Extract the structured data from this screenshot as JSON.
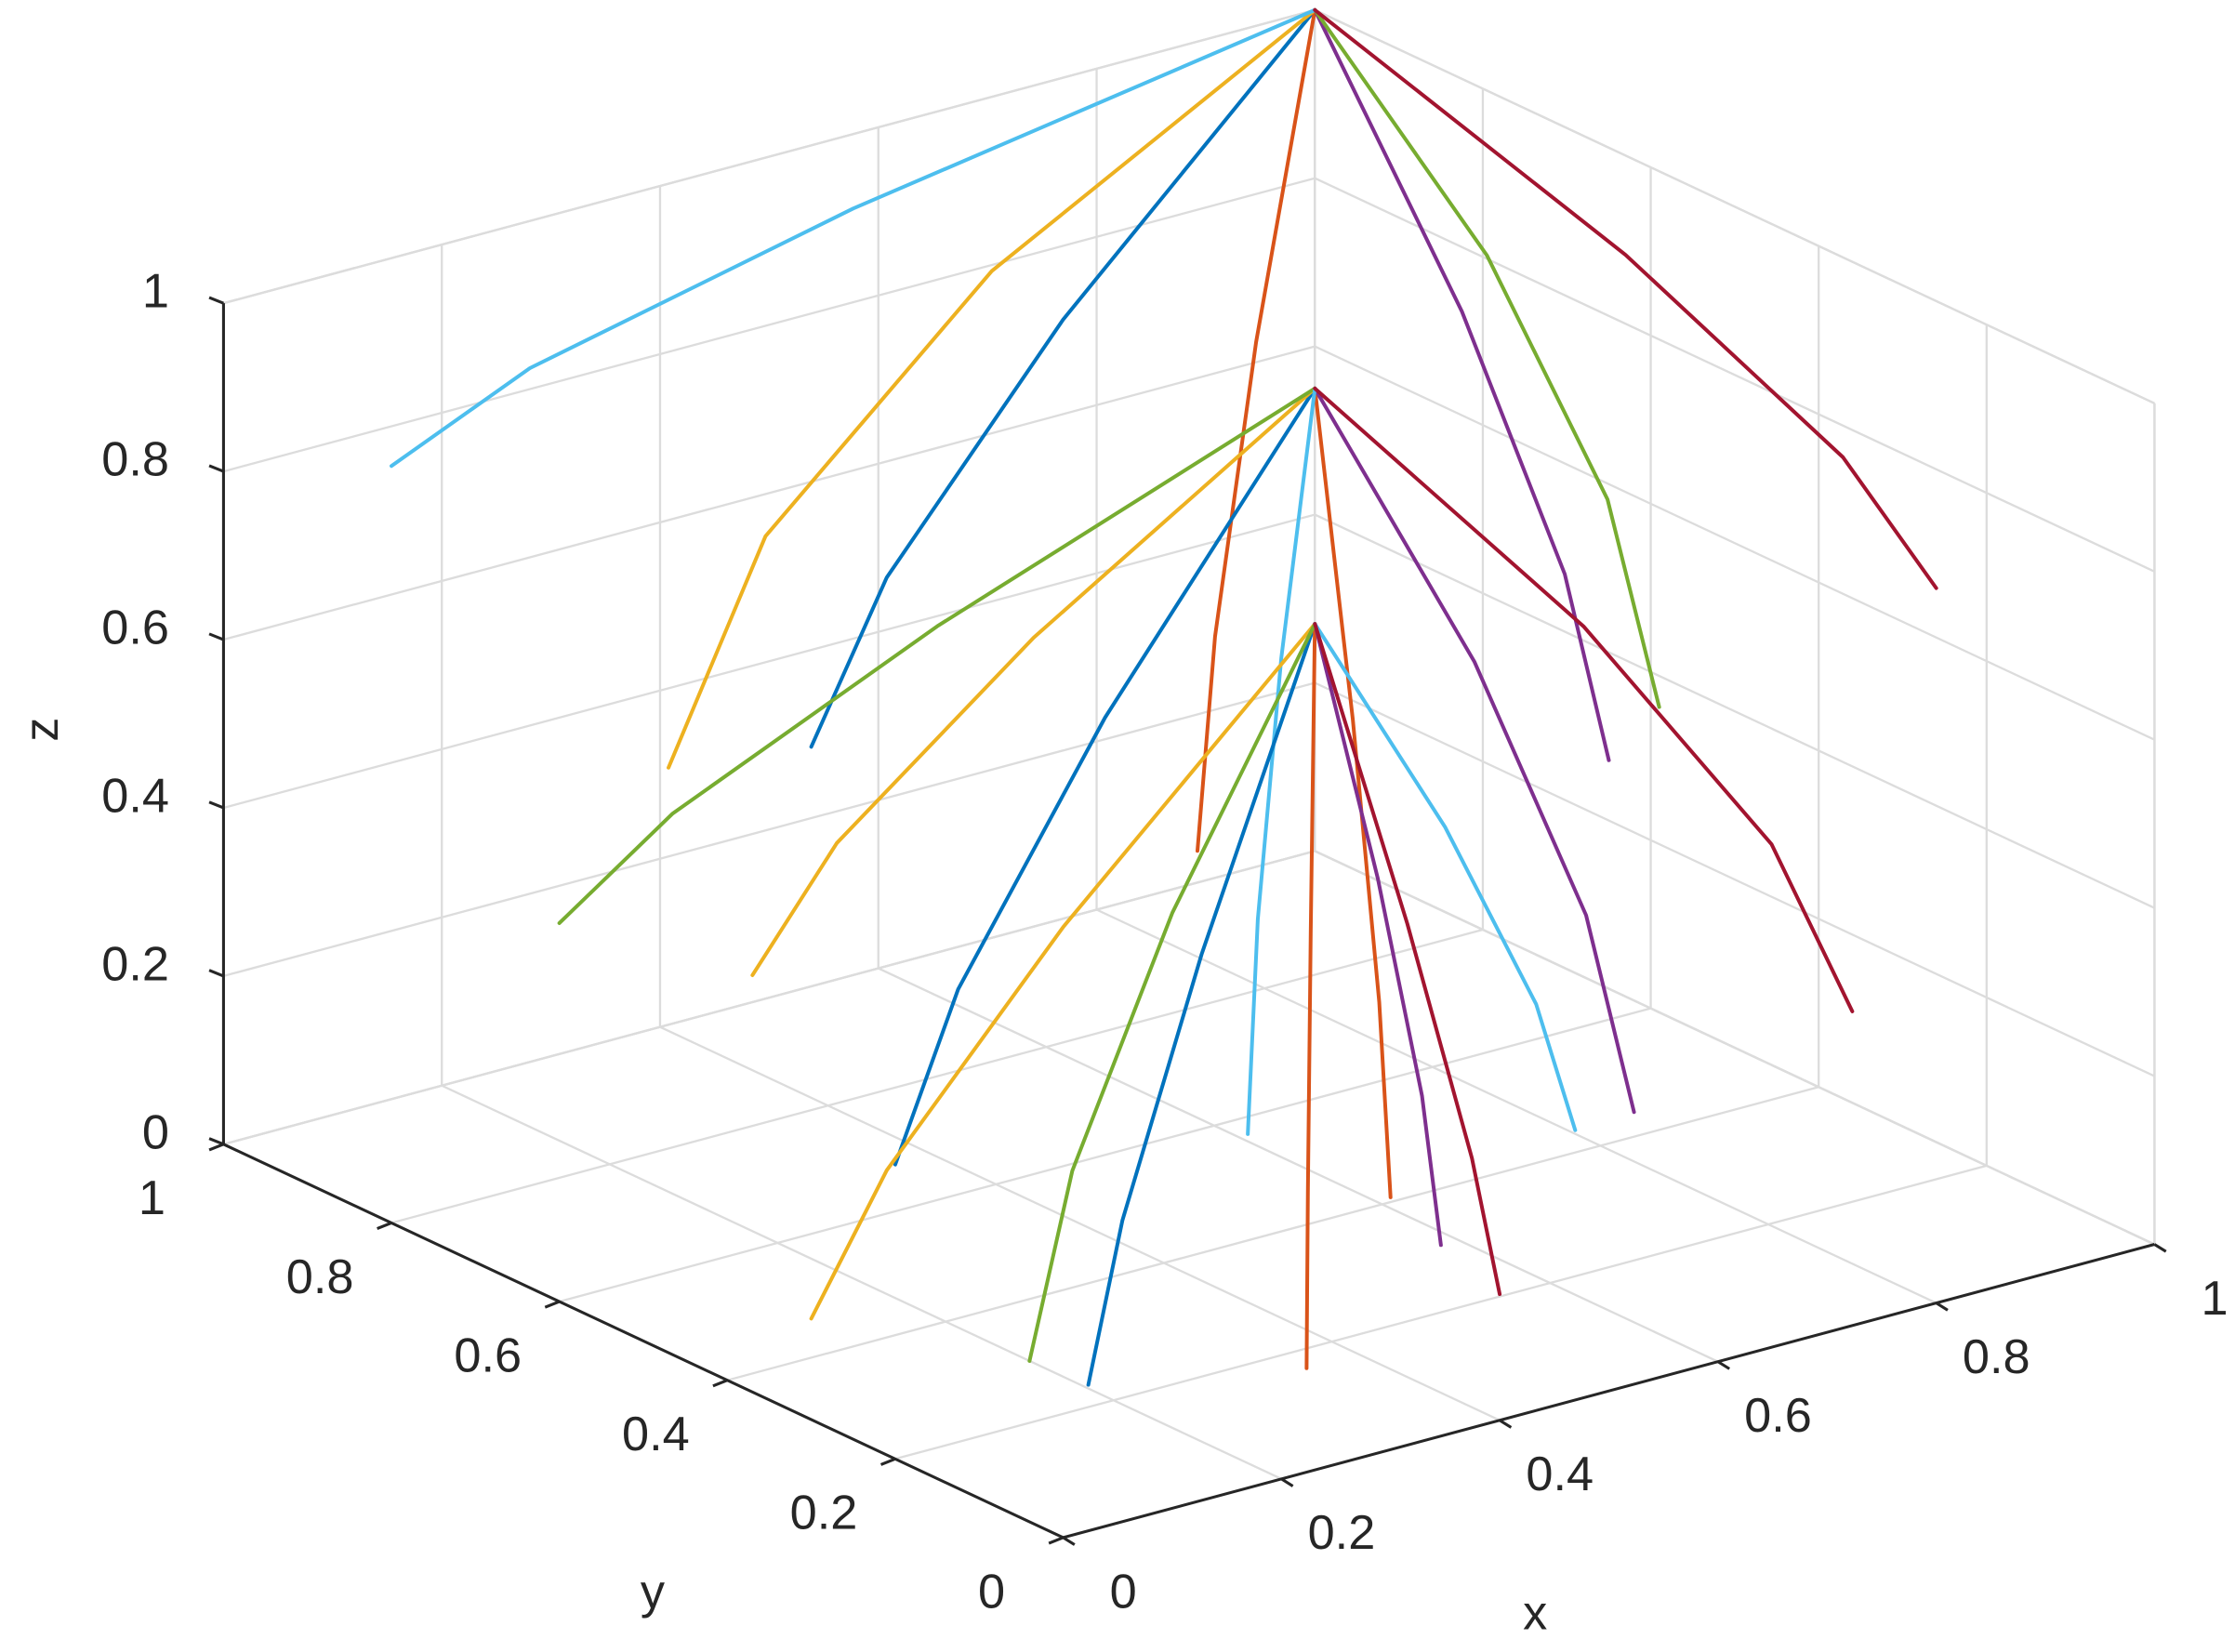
{
  "chart_data": {
    "type": "line3d",
    "xlabel": "x",
    "ylabel": "y",
    "zlabel": "z",
    "xlim": [
      0,
      1
    ],
    "ylim": [
      0,
      1
    ],
    "zlim": [
      0,
      1
    ],
    "xticks": [
      0,
      0.2,
      0.4,
      0.6,
      0.8,
      1
    ],
    "yticks": [
      0,
      0.2,
      0.4,
      0.6,
      0.8,
      1
    ],
    "zticks": [
      0,
      0.2,
      0.4,
      0.6,
      0.8,
      1
    ],
    "grid": true,
    "series": [
      {
        "color": "#0072BD",
        "x": [
          0,
          0.15,
          0.5,
          1
        ],
        "y": [
          0.3,
          0.405,
          0.65,
          1
        ],
        "z": [
          0.8,
          0.9,
          0.97,
          1
        ]
      },
      {
        "color": "#D95319",
        "x": [
          0.2,
          0.32,
          0.6,
          1
        ],
        "y": [
          0.1,
          0.235,
          0.55,
          1
        ],
        "z": [
          0.7,
          0.85,
          0.955,
          1
        ]
      },
      {
        "color": "#EDB120",
        "x": [
          0.1,
          0.235,
          0.55,
          1
        ],
        "y": [
          0.6,
          0.66,
          0.8,
          1
        ],
        "z": [
          0.6,
          0.8,
          0.94,
          1
        ]
      },
      {
        "color": "#7E2F8E",
        "x": [
          0.5,
          0.575,
          0.75,
          1
        ],
        "y": [
          0,
          0.15,
          0.5,
          1
        ],
        "z": [
          0.75,
          0.875,
          0.9625,
          1
        ]
      },
      {
        "color": "#77AC30",
        "x": [
          0.7,
          0.745,
          0.85,
          1
        ],
        "y": [
          0.2,
          0.32,
          0.6,
          1
        ],
        "z": [
          0.65,
          0.825,
          0.9475,
          1
        ]
      },
      {
        "color": "#4DBEEE",
        "x": [
          0,
          0.15,
          0.5,
          1
        ],
        "y": [
          0.8,
          0.83,
          0.9,
          1
        ],
        "z": [
          0.9,
          0.95,
          0.985,
          1
        ]
      },
      {
        "color": "#A2142F",
        "x": [
          0.8,
          0.83,
          0.9,
          1
        ],
        "y": [
          0,
          0.15,
          0.5,
          1
        ],
        "z": [
          0.85,
          0.925,
          0.9775,
          1
        ]
      },
      {
        "color": "#0072BD",
        "x": [
          0,
          0.15,
          0.5,
          1
        ],
        "y": [
          0.2,
          0.32,
          0.6,
          1
        ],
        "z": [
          0.35,
          0.45,
          0.52,
          0.55
        ]
      },
      {
        "color": "#D95319",
        "x": [
          0.3,
          0.405,
          0.65,
          1
        ],
        "y": [
          0,
          0.15,
          0.5,
          1
        ],
        "z": [
          0.3,
          0.425,
          0.5125,
          0.55
        ]
      },
      {
        "color": "#EDB120",
        "x": [
          0.1,
          0.235,
          0.55,
          1
        ],
        "y": [
          0.5,
          0.575,
          0.75,
          1
        ],
        "z": [
          0.4,
          0.475,
          0.5275,
          0.55
        ]
      },
      {
        "color": "#7E2F8E",
        "x": [
          0.6,
          0.66,
          0.8,
          1
        ],
        "y": [
          0.1,
          0.235,
          0.55,
          1
        ],
        "z": [
          0.25,
          0.4,
          0.505,
          0.55
        ]
      },
      {
        "color": "#77AC30",
        "x": [
          0,
          0.15,
          0.5,
          1
        ],
        "y": [
          0.6,
          0.66,
          0.8,
          1
        ],
        "z": [
          0.45,
          0.5,
          0.535,
          0.55
        ]
      },
      {
        "color": "#4DBEEE",
        "x": [
          0.4,
          0.49,
          0.7,
          1
        ],
        "y": [
          0.3,
          0.405,
          0.65,
          1
        ],
        "z": [
          0.2,
          0.375,
          0.4975,
          0.55
        ]
      },
      {
        "color": "#A2142F",
        "x": [
          0.8,
          0.83,
          0.9,
          1
        ],
        "y": [
          0.1,
          0.235,
          0.55,
          1
        ],
        "z": [
          0.3,
          0.425,
          0.5125,
          0.55
        ]
      },
      {
        "color": "#0072BD",
        "x": [
          0.1,
          0.235,
          0.55,
          1
        ],
        "y": [
          0.1,
          0.235,
          0.55,
          1
        ],
        "z": [
          0.1,
          0.185,
          0.2445,
          0.27
        ]
      },
      {
        "color": "#D95319",
        "x": [
          0.3,
          0.405,
          0.65,
          1
        ],
        "y": [
          0.1,
          0.235,
          0.55,
          1
        ],
        "z": [
          0.05,
          0.16,
          0.237,
          0.27
        ]
      },
      {
        "color": "#EDB120",
        "x": [
          0,
          0.15,
          0.5,
          1
        ],
        "y": [
          0.3,
          0.405,
          0.65,
          1
        ],
        "z": [
          0.12,
          0.195,
          0.2475,
          0.27
        ]
      },
      {
        "color": "#7E2F8E",
        "x": [
          0.5,
          0.575,
          0.75,
          1
        ],
        "y": [
          0.2,
          0.32,
          0.6,
          1
        ],
        "z": [
          0.08,
          0.175,
          0.2415,
          0.27
        ]
      },
      {
        "color": "#77AC30",
        "x": [
          0.2,
          0.32,
          0.6,
          1
        ],
        "y": [
          0.3,
          0.405,
          0.65,
          1
        ],
        "z": [
          0,
          0.135,
          0.2295,
          0.27
        ]
      },
      {
        "color": "#4DBEEE",
        "x": [
          0.7,
          0.745,
          0.85,
          1
        ],
        "y": [
          0.3,
          0.405,
          0.65,
          1
        ],
        "z": [
          0.1,
          0.185,
          0.2445,
          0.27
        ]
      },
      {
        "color": "#A2142F",
        "x": [
          0.4,
          0.49,
          0.7,
          1
        ],
        "y": [
          0,
          0.15,
          0.5,
          1
        ],
        "z": [
          0.15,
          0.21,
          0.252,
          0.27
        ]
      }
    ]
  }
}
